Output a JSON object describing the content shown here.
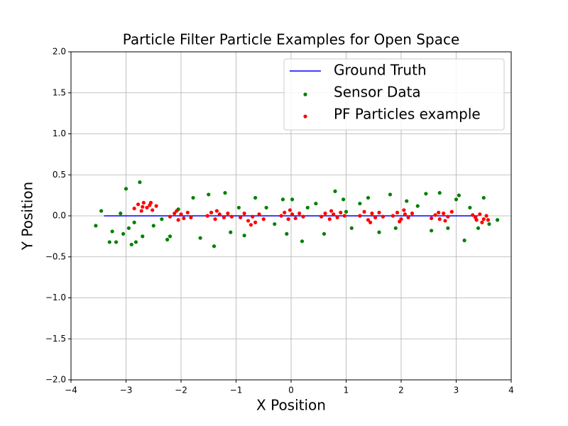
{
  "chart_data": {
    "type": "scatter",
    "title": "Particle Filter Particle Examples for Open Space",
    "xlabel": "X Position",
    "ylabel": "Y Position",
    "xlim": [
      -4,
      4
    ],
    "ylim": [
      -2,
      2
    ],
    "xticks": [
      {
        "value": -4,
        "label": "−4"
      },
      {
        "value": -3,
        "label": "−3"
      },
      {
        "value": -2,
        "label": "−2"
      },
      {
        "value": -1,
        "label": "−1"
      },
      0,
      1,
      2,
      3,
      4
    ],
    "yticks": [
      {
        "value": -2,
        "label": "−2.0"
      },
      {
        "value": -1.5,
        "label": "−1.5"
      },
      {
        "value": -1,
        "label": "−1.0"
      },
      {
        "value": -0.5,
        "label": "−0.5"
      },
      {
        "value": 0,
        "label": "0.0"
      },
      0.5,
      {
        "value": 1,
        "label": "1.0"
      },
      1.5,
      {
        "value": 2,
        "label": "2.0"
      }
    ],
    "grid": true,
    "legend": "upper right",
    "series": [
      {
        "name": "Ground Truth",
        "type": "line",
        "color": "#0000ff",
        "x": [
          -3.4,
          3.4
        ],
        "values": [
          0,
          0
        ]
      },
      {
        "name": "Sensor Data",
        "type": "scatter",
        "color": "#008000",
        "x": [
          -3.55,
          -3.45,
          -3.3,
          -3.25,
          -3.18,
          -3.1,
          -3.05,
          -3.0,
          -2.95,
          -2.9,
          -2.85,
          -2.82,
          -2.75,
          -2.7,
          -2.5,
          -2.35,
          -2.25,
          -2.2,
          -1.78,
          -1.65,
          -1.5,
          -1.4,
          -1.2,
          -1.1,
          -0.95,
          -0.85,
          -0.65,
          -0.45,
          -0.3,
          -0.15,
          -0.08,
          0.02,
          0.2,
          0.3,
          0.45,
          0.6,
          0.8,
          0.95,
          1.1,
          1.25,
          1.4,
          1.6,
          1.8,
          1.9,
          2.1,
          2.3,
          2.45,
          2.55,
          2.7,
          2.85,
          3.0,
          3.05,
          3.15,
          3.25,
          3.4,
          3.5,
          3.6,
          3.75,
          -2.05,
          1.0
        ],
        "values": [
          -0.12,
          0.06,
          -0.32,
          -0.19,
          -0.32,
          0.03,
          -0.22,
          0.33,
          -0.15,
          -0.35,
          -0.08,
          -0.32,
          0.41,
          -0.25,
          -0.12,
          -0.04,
          -0.29,
          -0.25,
          0.22,
          -0.27,
          0.26,
          -0.37,
          0.28,
          -0.2,
          0.1,
          -0.24,
          0.22,
          0.1,
          -0.1,
          0.2,
          -0.22,
          0.2,
          -0.31,
          0.1,
          0.15,
          -0.22,
          0.3,
          0.2,
          -0.15,
          0.15,
          0.22,
          -0.2,
          0.26,
          -0.15,
          0.18,
          0.12,
          0.27,
          -0.18,
          0.28,
          -0.15,
          0.2,
          0.25,
          -0.3,
          0.1,
          -0.15,
          0.22,
          -0.1,
          -0.05,
          0.08,
          0.05
        ]
      },
      {
        "name": "PF Particles example",
        "type": "scatter",
        "color": "#ff0000",
        "x": [
          -2.85,
          -2.78,
          -2.72,
          -2.68,
          -2.62,
          -2.57,
          -2.52,
          -2.45,
          -2.7,
          -2.55,
          -2.2,
          -2.12,
          -2.05,
          -2.0,
          -1.95,
          -1.88,
          -1.82,
          -2.08,
          -1.52,
          -1.45,
          -1.38,
          -1.3,
          -1.22,
          -1.15,
          -1.08,
          -1.35,
          -0.92,
          -0.85,
          -0.78,
          -0.7,
          -0.65,
          -0.58,
          -0.5,
          -0.73,
          -0.18,
          -0.12,
          -0.05,
          0.02,
          0.08,
          0.15,
          0.22,
          -0.02,
          0.55,
          0.62,
          0.7,
          0.77,
          0.84,
          0.9,
          0.97,
          0.73,
          1.25,
          1.33,
          1.4,
          1.47,
          1.53,
          1.6,
          1.67,
          1.44,
          1.85,
          1.93,
          2.0,
          2.07,
          2.13,
          2.2,
          2.05,
          1.97,
          2.55,
          2.62,
          2.7,
          2.77,
          2.85,
          2.92,
          2.8,
          2.68,
          3.3,
          3.37,
          3.43,
          3.5,
          3.55,
          3.47,
          3.35,
          3.58
        ],
        "values": [
          0.09,
          0.14,
          0.06,
          0.16,
          0.1,
          0.13,
          0.07,
          0.12,
          0.11,
          0.16,
          -0.01,
          0.03,
          -0.05,
          0.02,
          -0.03,
          0.04,
          -0.02,
          0.06,
          0.0,
          0.04,
          -0.04,
          0.02,
          -0.02,
          0.03,
          -0.01,
          0.06,
          -0.02,
          0.03,
          -0.06,
          -0.01,
          -0.08,
          0.02,
          -0.04,
          -0.11,
          0.0,
          0.04,
          -0.04,
          0.02,
          -0.03,
          0.03,
          -0.01,
          0.07,
          -0.01,
          0.03,
          -0.04,
          0.02,
          -0.02,
          0.04,
          0.0,
          0.06,
          0.0,
          0.05,
          -0.05,
          0.03,
          -0.02,
          0.04,
          -0.01,
          -0.08,
          0.0,
          0.04,
          -0.04,
          0.02,
          -0.02,
          0.03,
          0.07,
          -0.07,
          -0.03,
          0.01,
          -0.04,
          0.03,
          -0.01,
          0.05,
          -0.06,
          0.04,
          0.01,
          -0.05,
          0.02,
          -0.04,
          0.0,
          -0.08,
          -0.02,
          -0.05
        ]
      }
    ]
  }
}
